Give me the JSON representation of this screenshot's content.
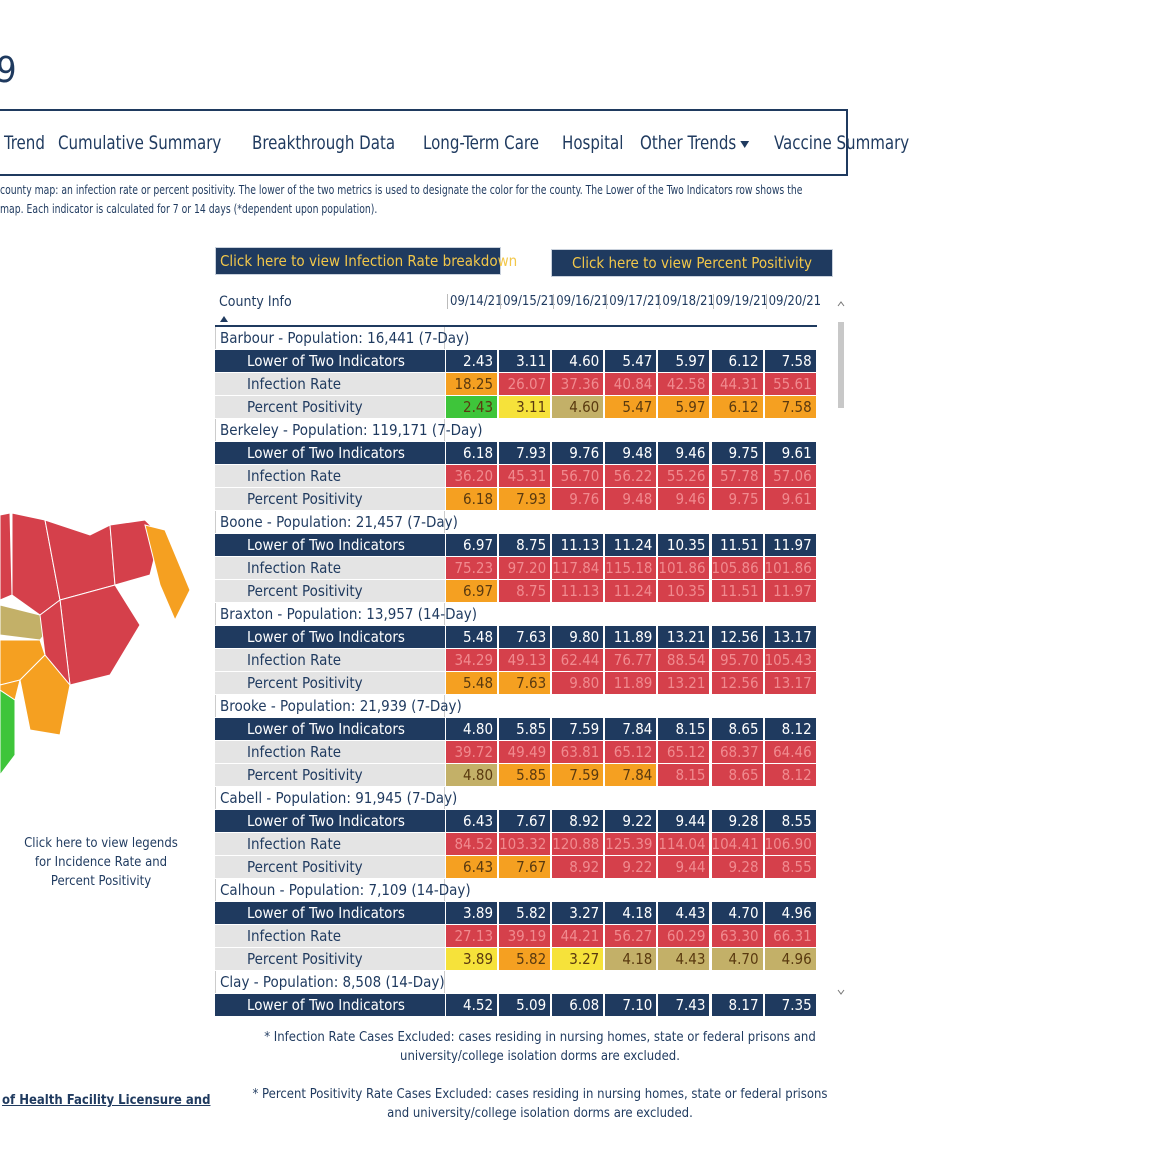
{
  "header": {
    "title": "9",
    "nav": [
      "Trend",
      "Cumulative Summary",
      "Breakthrough Data",
      "Long-Term Care",
      "Hospital",
      "Other Trends",
      "Vaccine Summary"
    ]
  },
  "description": [
    "county map: an infection rate or percent positivity. The lower of the two metrics is used to designate the color for the county. The Lower of the Two Indicators row shows the",
    "map. Each indicator is calculated for 7 or 14 days (*dependent upon population)."
  ],
  "buttons": [
    "Click here to view Infection Rate breakdown",
    "Click here to view Percent Positivity"
  ],
  "legend_link": "Click here to view legends for Incidence Rate and Percent Positivity",
  "footer_link": "of Health Facility Licensure and",
  "table": {
    "header": "County Info",
    "dates": [
      "09/14/21",
      "09/15/21",
      "09/16/21",
      "09/17/21",
      "09/18/21",
      "09/19/21",
      "09/20/21"
    ],
    "row_labels": [
      "Lower of Two Indicators",
      "Infection Rate",
      "Percent Positivity"
    ],
    "counties": [
      {
        "name": "Barbour - Population: 16,441 (7-Day)",
        "rows": [
          {
            "values": [
              "2.43",
              "3.11",
              "4.60",
              "5.47",
              "5.97",
              "6.12",
              "7.58"
            ]
          },
          {
            "values": [
              "18.25",
              "26.07",
              "37.36",
              "40.84",
              "42.58",
              "44.31",
              "55.61"
            ],
            "colors": [
              "#f5a021",
              "#d5404b",
              "#d5404b",
              "#d5404b",
              "#d5404b",
              "#d5404b",
              "#d5404b"
            ]
          },
          {
            "values": [
              "2.43",
              "3.11",
              "4.60",
              "5.47",
              "5.97",
              "6.12",
              "7.58"
            ],
            "colors": [
              "#3ec53a",
              "#f6e23a",
              "#c3b068",
              "#f5a021",
              "#f5a021",
              "#f5a021",
              "#f5a021"
            ]
          }
        ]
      },
      {
        "name": "Berkeley - Population: 119,171 (7-Day)",
        "rows": [
          {
            "values": [
              "6.18",
              "7.93",
              "9.76",
              "9.48",
              "9.46",
              "9.75",
              "9.61"
            ]
          },
          {
            "values": [
              "36.20",
              "45.31",
              "56.70",
              "56.22",
              "55.26",
              "57.78",
              "57.06"
            ],
            "colors": [
              "#d5404b",
              "#d5404b",
              "#d5404b",
              "#d5404b",
              "#d5404b",
              "#d5404b",
              "#d5404b"
            ]
          },
          {
            "values": [
              "6.18",
              "7.93",
              "9.76",
              "9.48",
              "9.46",
              "9.75",
              "9.61"
            ],
            "colors": [
              "#f5a021",
              "#f5a021",
              "#d5404b",
              "#d5404b",
              "#d5404b",
              "#d5404b",
              "#d5404b"
            ]
          }
        ]
      },
      {
        "name": "Boone - Population: 21,457 (7-Day)",
        "rows": [
          {
            "values": [
              "6.97",
              "8.75",
              "11.13",
              "11.24",
              "10.35",
              "11.51",
              "11.97"
            ]
          },
          {
            "values": [
              "75.23",
              "97.20",
              "117.84",
              "115.18",
              "101.86",
              "105.86",
              "101.86"
            ],
            "colors": [
              "#d5404b",
              "#d5404b",
              "#d5404b",
              "#d5404b",
              "#d5404b",
              "#d5404b",
              "#d5404b"
            ]
          },
          {
            "values": [
              "6.97",
              "8.75",
              "11.13",
              "11.24",
              "10.35",
              "11.51",
              "11.97"
            ],
            "colors": [
              "#f5a021",
              "#d5404b",
              "#d5404b",
              "#d5404b",
              "#d5404b",
              "#d5404b",
              "#d5404b"
            ]
          }
        ]
      },
      {
        "name": "Braxton - Population: 13,957 (14-Day)",
        "rows": [
          {
            "values": [
              "5.48",
              "7.63",
              "9.80",
              "11.89",
              "13.21",
              "12.56",
              "13.17"
            ]
          },
          {
            "values": [
              "34.29",
              "49.13",
              "62.44",
              "76.77",
              "88.54",
              "95.70",
              "105.43"
            ],
            "colors": [
              "#d5404b",
              "#d5404b",
              "#d5404b",
              "#d5404b",
              "#d5404b",
              "#d5404b",
              "#d5404b"
            ]
          },
          {
            "values": [
              "5.48",
              "7.63",
              "9.80",
              "11.89",
              "13.21",
              "12.56",
              "13.17"
            ],
            "colors": [
              "#f5a021",
              "#f5a021",
              "#d5404b",
              "#d5404b",
              "#d5404b",
              "#d5404b",
              "#d5404b"
            ]
          }
        ]
      },
      {
        "name": "Brooke - Population: 21,939 (7-Day)",
        "rows": [
          {
            "values": [
              "4.80",
              "5.85",
              "7.59",
              "7.84",
              "8.15",
              "8.65",
              "8.12"
            ]
          },
          {
            "values": [
              "39.72",
              "49.49",
              "63.81",
              "65.12",
              "65.12",
              "68.37",
              "64.46"
            ],
            "colors": [
              "#d5404b",
              "#d5404b",
              "#d5404b",
              "#d5404b",
              "#d5404b",
              "#d5404b",
              "#d5404b"
            ]
          },
          {
            "values": [
              "4.80",
              "5.85",
              "7.59",
              "7.84",
              "8.15",
              "8.65",
              "8.12"
            ],
            "colors": [
              "#c3b068",
              "#f5a021",
              "#f5a021",
              "#f5a021",
              "#d5404b",
              "#d5404b",
              "#d5404b"
            ]
          }
        ]
      },
      {
        "name": "Cabell - Population: 91,945 (7-Day)",
        "rows": [
          {
            "values": [
              "6.43",
              "7.67",
              "8.92",
              "9.22",
              "9.44",
              "9.28",
              "8.55"
            ]
          },
          {
            "values": [
              "84.52",
              "103.32",
              "120.88",
              "125.39",
              "114.04",
              "104.41",
              "106.90"
            ],
            "colors": [
              "#d5404b",
              "#d5404b",
              "#d5404b",
              "#d5404b",
              "#d5404b",
              "#d5404b",
              "#d5404b"
            ]
          },
          {
            "values": [
              "6.43",
              "7.67",
              "8.92",
              "9.22",
              "9.44",
              "9.28",
              "8.55"
            ],
            "colors": [
              "#f5a021",
              "#f5a021",
              "#d5404b",
              "#d5404b",
              "#d5404b",
              "#d5404b",
              "#d5404b"
            ]
          }
        ]
      },
      {
        "name": "Calhoun - Population: 7,109 (14-Day)",
        "rows": [
          {
            "values": [
              "3.89",
              "5.82",
              "3.27",
              "4.18",
              "4.43",
              "4.70",
              "4.96"
            ]
          },
          {
            "values": [
              "27.13",
              "39.19",
              "44.21",
              "56.27",
              "60.29",
              "63.30",
              "66.31"
            ],
            "colors": [
              "#d5404b",
              "#d5404b",
              "#d5404b",
              "#d5404b",
              "#d5404b",
              "#d5404b",
              "#d5404b"
            ]
          },
          {
            "values": [
              "3.89",
              "5.82",
              "3.27",
              "4.18",
              "4.43",
              "4.70",
              "4.96"
            ],
            "colors": [
              "#f6e23a",
              "#f5a021",
              "#f6e23a",
              "#c3b068",
              "#c3b068",
              "#c3b068",
              "#c3b068"
            ]
          }
        ]
      },
      {
        "name": "Clay - Population: 8,508 (14-Day)",
        "rows": [
          {
            "values": [
              "4.52",
              "5.09",
              "6.08",
              "7.10",
              "7.43",
              "8.17",
              "7.35"
            ]
          }
        ]
      }
    ]
  },
  "footnotes": [
    "* Infection Rate Cases Excluded: cases residing in nursing homes, state or federal prisons and university/college isolation dorms are excluded.",
    "* Percent Positivity Rate Cases Excluded: cases residing in nursing homes, state or federal prisons and university/college isolation dorms are excluded."
  ]
}
